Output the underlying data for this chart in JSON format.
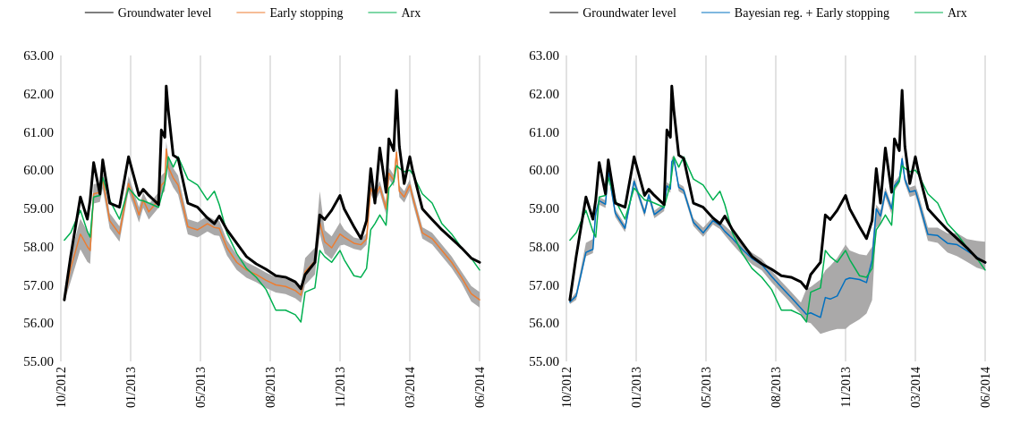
{
  "chart_data": [
    {
      "type": "line",
      "legend": "top",
      "grid": "x",
      "marker": "none",
      "xlim": [
        "2012-10-18",
        "2014-06-10"
      ],
      "xticks": [
        {
          "value": "2012-10-18",
          "label": "10/2012"
        },
        {
          "value": "2013-01-26",
          "label": "01/2013"
        },
        {
          "value": "2013-05-06",
          "label": "05/2013"
        },
        {
          "value": "2013-08-14",
          "label": "08/2013"
        },
        {
          "value": "2013-11-22",
          "label": "11/2013"
        },
        {
          "value": "2014-03-02",
          "label": "03/2014"
        },
        {
          "value": "2014-06-10",
          "label": "06/2014"
        }
      ],
      "ylim": [
        55,
        63
      ],
      "yticks": [
        {
          "value": 55,
          "label": "55.00"
        },
        {
          "value": 56,
          "label": "56.00"
        },
        {
          "value": 57,
          "label": "57.00"
        },
        {
          "value": 58,
          "label": "58.00"
        },
        {
          "value": 59,
          "label": "59.00"
        },
        {
          "value": 60,
          "label": "60.00"
        },
        {
          "value": 61,
          "label": "61.00"
        },
        {
          "value": 62,
          "label": "62.00"
        },
        {
          "value": 63,
          "label": "63.00"
        }
      ],
      "x": [
        "2012-10-23",
        "2012-11-01",
        "2012-11-15",
        "2012-11-25",
        "2012-11-29",
        "2012-12-04",
        "2012-12-13",
        "2012-12-17",
        "2012-12-27",
        "2013-01-10",
        "2013-01-23",
        "2013-02-07",
        "2013-02-13",
        "2013-02-21",
        "2013-03-07",
        "2013-03-11",
        "2013-03-16",
        "2013-03-18",
        "2013-03-21",
        "2013-03-28",
        "2013-04-04",
        "2013-04-18",
        "2013-05-02",
        "2013-05-16",
        "2013-05-26",
        "2013-06-02",
        "2013-06-13",
        "2013-06-27",
        "2013-07-11",
        "2013-07-25",
        "2013-08-08",
        "2013-08-22",
        "2013-09-05",
        "2013-09-19",
        "2013-09-27",
        "2013-10-03",
        "2013-10-17",
        "2013-10-24",
        "2013-10-31",
        "2013-11-10",
        "2013-11-22",
        "2013-11-28",
        "2013-12-12",
        "2013-12-22",
        "2013-12-30",
        "2014-01-05",
        "2014-01-11",
        "2014-01-18",
        "2014-01-27",
        "2014-01-31",
        "2014-02-07",
        "2014-02-11",
        "2014-02-15",
        "2014-02-22",
        "2014-03-02",
        "2014-03-06",
        "2014-03-20",
        "2014-04-03",
        "2014-04-17",
        "2014-05-01",
        "2014-05-15",
        "2014-05-29",
        "2014-06-10"
      ],
      "series": [
        {
          "name": "Groundwater level",
          "color": "#000000",
          "values": [
            56.61,
            57.74,
            59.3,
            58.72,
            59.22,
            60.2,
            59.38,
            60.27,
            59.14,
            59.03,
            60.35,
            59.34,
            59.5,
            59.34,
            59.1,
            61.05,
            60.86,
            62.2,
            61.56,
            60.39,
            60.31,
            59.14,
            59.03,
            58.75,
            58.6,
            58.8,
            58.44,
            58.09,
            57.74,
            57.55,
            57.41,
            57.24,
            57.2,
            57.08,
            56.9,
            57.27,
            57.59,
            58.83,
            58.71,
            58.95,
            59.34,
            58.99,
            58.52,
            58.21,
            58.68,
            60.04,
            59.14,
            60.58,
            59.42,
            60.82,
            60.51,
            62.09,
            60.62,
            59.65,
            60.35,
            60.0,
            58.99,
            58.71,
            58.44,
            58.21,
            57.97,
            57.7,
            57.59
          ]
        },
        {
          "name": "Early stopping",
          "color": "#ed7d31",
          "values": [
            56.61,
            57.43,
            58.33,
            58.0,
            57.9,
            59.38,
            59.42,
            59.77,
            58.68,
            58.33,
            59.65,
            58.83,
            59.22,
            58.91,
            59.22,
            59.61,
            59.7,
            60.55,
            60.08,
            59.8,
            59.61,
            58.52,
            58.44,
            58.6,
            58.5,
            58.48,
            57.97,
            57.59,
            57.39,
            57.27,
            57.12,
            57.0,
            56.96,
            56.85,
            56.73,
            57.35,
            57.62,
            58.64,
            58.13,
            57.97,
            58.33,
            58.25,
            58.09,
            58.05,
            58.2,
            59.53,
            59.3,
            59.57,
            58.99,
            59.92,
            59.73,
            60.47,
            59.45,
            59.3,
            59.61,
            59.3,
            58.36,
            58.21,
            57.9,
            57.59,
            57.2,
            56.77,
            56.61
          ],
          "lower": [
            56.56,
            57.08,
            57.93,
            57.6,
            57.55,
            59.13,
            59.17,
            59.52,
            58.48,
            58.13,
            59.45,
            58.63,
            59.02,
            58.71,
            59.02,
            59.36,
            59.45,
            60.35,
            59.83,
            59.55,
            59.36,
            58.32,
            58.24,
            58.4,
            58.3,
            58.28,
            57.77,
            57.39,
            57.19,
            57.07,
            56.92,
            56.8,
            56.76,
            56.65,
            56.53,
            57.0,
            57.27,
            58.34,
            57.83,
            57.67,
            58.03,
            58.05,
            57.94,
            57.9,
            58.05,
            59.38,
            59.15,
            59.42,
            58.84,
            59.77,
            59.58,
            60.32,
            59.3,
            59.15,
            59.46,
            59.15,
            58.21,
            58.06,
            57.75,
            57.44,
            57.05,
            56.57,
            56.41
          ],
          "upper": [
            56.66,
            57.78,
            58.73,
            58.4,
            58.25,
            59.63,
            59.67,
            60.02,
            58.88,
            58.53,
            59.85,
            59.03,
            59.42,
            59.11,
            59.42,
            59.86,
            59.95,
            60.75,
            60.33,
            60.05,
            59.86,
            58.72,
            58.64,
            58.8,
            58.7,
            58.68,
            58.17,
            57.79,
            57.59,
            57.47,
            57.32,
            57.2,
            57.16,
            57.05,
            56.93,
            57.7,
            57.97,
            59.45,
            58.43,
            58.27,
            58.63,
            58.45,
            58.24,
            58.2,
            58.35,
            59.68,
            59.45,
            59.72,
            59.14,
            60.07,
            59.88,
            60.62,
            59.6,
            59.45,
            59.76,
            59.45,
            58.51,
            58.36,
            58.05,
            57.74,
            57.35,
            56.97,
            56.81
          ]
        },
        {
          "name": "Arx",
          "color": "#00b050",
          "values": [
            58.17,
            58.36,
            58.95,
            58.4,
            58.25,
            59.3,
            59.34,
            59.81,
            59.22,
            58.72,
            59.53,
            59.22,
            59.2,
            59.14,
            59.03,
            59.3,
            59.65,
            59.9,
            60.35,
            60.08,
            60.35,
            59.77,
            59.61,
            59.22,
            59.45,
            59.1,
            58.36,
            57.82,
            57.43,
            57.2,
            56.88,
            56.34,
            56.34,
            56.22,
            56.03,
            56.81,
            56.92,
            57.9,
            57.74,
            57.59,
            57.9,
            57.66,
            57.24,
            57.2,
            57.43,
            58.44,
            58.6,
            58.83,
            58.56,
            59.53,
            59.7,
            60.12,
            60.05,
            59.96,
            60.0,
            59.9,
            59.38,
            59.14,
            58.6,
            58.33,
            57.97,
            57.7,
            57.39
          ]
        }
      ]
    },
    {
      "type": "line",
      "legend": "top",
      "grid": "x",
      "marker": "none",
      "xlim": [
        "2012-10-18",
        "2014-06-10"
      ],
      "xticks": [
        {
          "value": "2012-10-18",
          "label": "10/2012"
        },
        {
          "value": "2013-01-26",
          "label": "01/2013"
        },
        {
          "value": "2013-05-06",
          "label": "05/2013"
        },
        {
          "value": "2013-08-14",
          "label": "08/2013"
        },
        {
          "value": "2013-11-22",
          "label": "11/2013"
        },
        {
          "value": "2014-03-02",
          "label": "03/2014"
        },
        {
          "value": "2014-06-10",
          "label": "06/2014"
        }
      ],
      "ylim": [
        55,
        63
      ],
      "yticks": [
        {
          "value": 55,
          "label": "55.00"
        },
        {
          "value": 56,
          "label": "56.00"
        },
        {
          "value": 57,
          "label": "57.00"
        },
        {
          "value": 58,
          "label": "58.00"
        },
        {
          "value": 59,
          "label": "59.00"
        },
        {
          "value": 60,
          "label": "60.00"
        },
        {
          "value": 61,
          "label": "61.00"
        },
        {
          "value": 62,
          "label": "62.00"
        },
        {
          "value": 63,
          "label": "63.00"
        }
      ],
      "x": [
        "2012-10-23",
        "2012-11-01",
        "2012-11-15",
        "2012-11-25",
        "2012-11-29",
        "2012-12-04",
        "2012-12-13",
        "2012-12-17",
        "2012-12-27",
        "2013-01-10",
        "2013-01-23",
        "2013-02-07",
        "2013-02-13",
        "2013-02-21",
        "2013-03-07",
        "2013-03-11",
        "2013-03-16",
        "2013-03-18",
        "2013-03-21",
        "2013-03-28",
        "2013-04-04",
        "2013-04-18",
        "2013-05-02",
        "2013-05-16",
        "2013-05-26",
        "2013-06-02",
        "2013-06-13",
        "2013-06-27",
        "2013-07-11",
        "2013-07-25",
        "2013-08-08",
        "2013-08-22",
        "2013-09-05",
        "2013-09-19",
        "2013-09-27",
        "2013-10-03",
        "2013-10-17",
        "2013-10-24",
        "2013-10-31",
        "2013-11-10",
        "2013-11-22",
        "2013-11-28",
        "2013-12-12",
        "2013-12-22",
        "2013-12-30",
        "2014-01-05",
        "2014-01-11",
        "2014-01-18",
        "2014-01-27",
        "2014-01-31",
        "2014-02-07",
        "2014-02-11",
        "2014-02-15",
        "2014-02-22",
        "2014-03-02",
        "2014-03-06",
        "2014-03-20",
        "2014-04-03",
        "2014-04-17",
        "2014-05-01",
        "2014-05-15",
        "2014-05-29",
        "2014-06-10"
      ],
      "series": [
        {
          "name": "Groundwater level",
          "color": "#000000",
          "values": [
            56.61,
            57.74,
            59.3,
            58.72,
            59.22,
            60.2,
            59.38,
            60.27,
            59.14,
            59.03,
            60.35,
            59.34,
            59.5,
            59.34,
            59.1,
            61.05,
            60.86,
            62.2,
            61.56,
            60.39,
            60.31,
            59.14,
            59.03,
            58.75,
            58.6,
            58.8,
            58.44,
            58.09,
            57.74,
            57.55,
            57.41,
            57.24,
            57.2,
            57.08,
            56.9,
            57.27,
            57.59,
            58.83,
            58.71,
            58.95,
            59.34,
            58.99,
            58.52,
            58.21,
            58.68,
            60.04,
            59.14,
            60.58,
            59.42,
            60.82,
            60.51,
            62.09,
            60.62,
            59.65,
            60.35,
            60.0,
            58.99,
            58.71,
            58.44,
            58.21,
            57.97,
            57.7,
            57.59
          ]
        },
        {
          "name": "Bayesian reg. + Early stopping",
          "color": "#0070c0",
          "values": [
            56.55,
            56.71,
            57.85,
            57.93,
            58.88,
            59.2,
            59.11,
            59.98,
            58.88,
            58.48,
            59.71,
            58.88,
            59.35,
            58.84,
            59.03,
            59.59,
            59.51,
            60.22,
            60.3,
            59.55,
            59.47,
            58.64,
            58.36,
            58.68,
            58.56,
            58.4,
            58.21,
            57.93,
            57.69,
            57.53,
            57.22,
            56.94,
            56.67,
            56.39,
            56.23,
            56.27,
            56.15,
            56.67,
            56.63,
            56.71,
            57.14,
            57.18,
            57.14,
            57.06,
            57.65,
            58.99,
            58.8,
            59.43,
            58.99,
            59.59,
            59.75,
            60.3,
            59.75,
            59.43,
            59.47,
            59.23,
            58.32,
            58.29,
            58.09,
            58.05,
            57.89,
            57.73,
            57.57
          ],
          "lower": [
            56.5,
            56.61,
            57.75,
            57.83,
            58.78,
            59.1,
            59.01,
            59.88,
            58.78,
            58.38,
            59.61,
            58.78,
            59.25,
            58.74,
            58.93,
            59.49,
            59.41,
            60.12,
            60.2,
            59.45,
            59.37,
            58.54,
            58.26,
            58.58,
            58.46,
            58.3,
            58.06,
            57.78,
            57.54,
            57.38,
            57.07,
            56.79,
            56.52,
            56.24,
            56.03,
            56.0,
            55.72,
            55.76,
            55.8,
            55.85,
            55.85,
            55.95,
            56.1,
            56.25,
            56.6,
            58.5,
            58.6,
            59.3,
            58.85,
            59.45,
            59.65,
            60.2,
            59.65,
            59.3,
            59.35,
            59.1,
            58.15,
            58.1,
            57.85,
            57.75,
            57.6,
            57.45,
            57.38
          ],
          "upper": [
            56.6,
            56.81,
            58.1,
            58.2,
            58.98,
            59.3,
            59.21,
            60.08,
            58.98,
            58.58,
            59.81,
            58.98,
            59.45,
            58.94,
            59.13,
            59.69,
            59.61,
            60.32,
            60.4,
            59.65,
            59.57,
            58.74,
            58.5,
            58.78,
            58.66,
            58.55,
            58.36,
            58.08,
            57.84,
            57.68,
            57.37,
            57.09,
            56.82,
            56.54,
            56.9,
            56.95,
            57.14,
            57.38,
            57.5,
            57.7,
            58.05,
            57.9,
            57.8,
            57.77,
            58.0,
            59.1,
            58.95,
            59.55,
            59.1,
            59.7,
            59.85,
            60.4,
            59.85,
            59.55,
            59.6,
            59.4,
            58.5,
            58.5,
            58.35,
            58.35,
            58.2,
            58.15,
            58.13
          ]
        },
        {
          "name": "Arx",
          "color": "#00b050",
          "values": [
            58.17,
            58.36,
            58.95,
            58.4,
            58.25,
            59.3,
            59.34,
            59.81,
            59.22,
            58.72,
            59.53,
            59.22,
            59.2,
            59.14,
            59.03,
            59.3,
            59.65,
            59.9,
            60.35,
            60.08,
            60.35,
            59.77,
            59.61,
            59.22,
            59.45,
            59.1,
            58.36,
            57.82,
            57.43,
            57.2,
            56.88,
            56.34,
            56.34,
            56.22,
            56.03,
            56.81,
            56.92,
            57.9,
            57.74,
            57.59,
            57.9,
            57.66,
            57.24,
            57.2,
            57.43,
            58.44,
            58.6,
            58.83,
            58.56,
            59.53,
            59.7,
            60.12,
            60.05,
            59.96,
            60.0,
            59.9,
            59.38,
            59.14,
            58.6,
            58.33,
            57.97,
            57.7,
            57.39
          ]
        }
      ]
    }
  ]
}
